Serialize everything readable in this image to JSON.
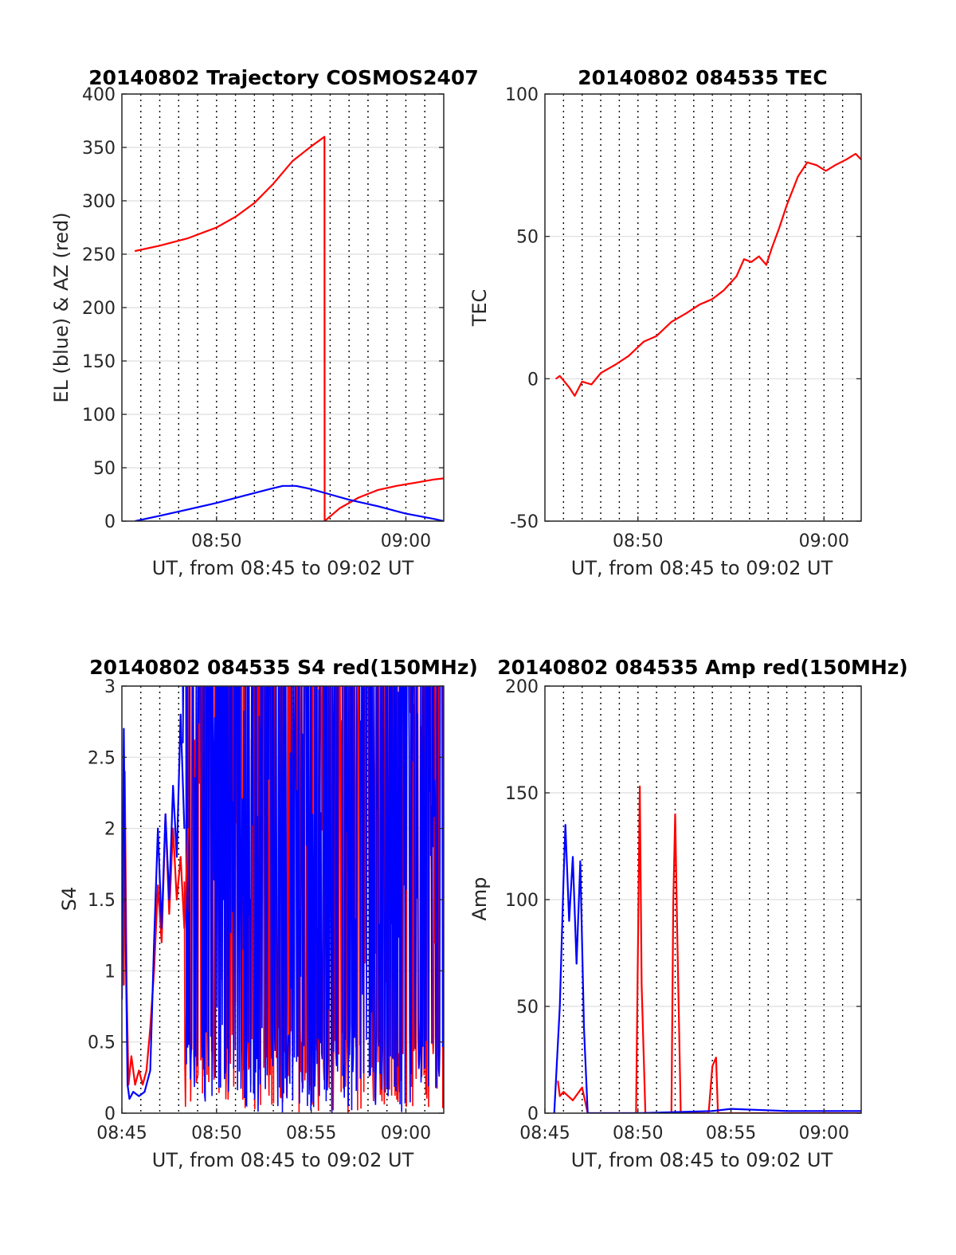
{
  "chart_data": [
    {
      "type": "line",
      "title": "20140802 Trajectory COSMOS2407",
      "xlabel": "UT, from 08:45 to 09:02 UT",
      "ylabel": "EL (blue) & AZ (red)",
      "xlim": [
        45.0,
        62.0
      ],
      "ylim": [
        0,
        400
      ],
      "xticks": [
        50,
        60
      ],
      "xtick_labels": [
        "08:50",
        "09:00"
      ],
      "yticks": [
        0,
        50,
        100,
        150,
        200,
        250,
        300,
        350,
        400
      ],
      "ytick_labels": [
        "0",
        "50",
        "100",
        "150",
        "200",
        "250",
        "300",
        "350",
        "400"
      ],
      "grid": true,
      "colors": {
        "EL": "#0000ff",
        "AZ": "#ff0000"
      },
      "series": [
        {
          "color": "#ff0000",
          "x": [
            45.7,
            47.0,
            48.5,
            50.0,
            51.0,
            52.0,
            53.0,
            54.0,
            55.0,
            55.7,
            55.71,
            56.5,
            57.5,
            58.5,
            59.5,
            60.5,
            61.5,
            62.0
          ],
          "y": [
            253,
            258,
            265,
            275,
            285,
            298,
            316,
            337,
            351,
            360,
            0,
            12,
            22,
            29,
            33,
            36,
            39,
            40
          ]
        },
        {
          "color": "#0000ff",
          "x": [
            45.7,
            47.0,
            48.5,
            50.0,
            51.5,
            52.8,
            53.5,
            54.2,
            55.0,
            56.0,
            57.0,
            58.5,
            60.0,
            61.5,
            62.0
          ],
          "y": [
            0,
            5,
            11,
            17,
            24,
            30,
            33,
            33,
            30,
            25,
            20,
            14,
            7,
            2,
            0
          ]
        }
      ]
    },
    {
      "type": "line",
      "title": "20140802 084535 TEC",
      "xlabel": "UT, from 08:45 to 09:02 UT",
      "ylabel": "TEC",
      "xlim": [
        45.0,
        62.0
      ],
      "ylim": [
        -50,
        100
      ],
      "xticks": [
        50,
        60
      ],
      "xtick_labels": [
        "08:50",
        "09:00"
      ],
      "yticks": [
        -50,
        0,
        50,
        100
      ],
      "ytick_labels": [
        "-50",
        "0",
        "50",
        "100"
      ],
      "grid": true,
      "series": [
        {
          "color": "#ff0000",
          "x": [
            45.6,
            45.8,
            46.3,
            46.6,
            47.0,
            47.5,
            48.0,
            48.8,
            49.5,
            50.3,
            51.0,
            51.8,
            52.6,
            53.3,
            54.0,
            54.6,
            55.3,
            55.7,
            56.1,
            56.5,
            56.9,
            57.2,
            57.6,
            58.0,
            58.6,
            59.1,
            59.6,
            60.1,
            60.6,
            61.2,
            61.7,
            62.0
          ],
          "y": [
            0,
            1,
            -3,
            -6,
            -1,
            -2,
            2,
            5,
            8,
            13,
            15,
            20,
            23,
            26,
            28,
            31,
            36,
            42,
            41,
            43,
            40,
            46,
            53,
            61,
            71,
            76,
            75,
            73,
            75,
            77,
            79,
            77
          ]
        }
      ]
    },
    {
      "type": "line",
      "title": "20140802 084535 S4 red(150MHz)",
      "xlabel": "UT, from 08:45 to 09:02 UT",
      "ylabel": "S4",
      "xlim": [
        45.0,
        62.0
      ],
      "ylim": [
        0,
        3
      ],
      "xticks": [
        45,
        50,
        55,
        60
      ],
      "xtick_labels": [
        "08:45",
        "08:50",
        "08:55",
        "09:00"
      ],
      "yticks": [
        0,
        0.5,
        1,
        1.5,
        2,
        2.5,
        3
      ],
      "ytick_labels": [
        "0",
        "0.5",
        "1",
        "1.5",
        "2",
        "2.5",
        "3"
      ],
      "grid": true,
      "series": [
        {
          "color": "#ff0000",
          "x": [
            45.1,
            45.15,
            45.25,
            45.35,
            45.5,
            45.7,
            45.9,
            46.1,
            46.3,
            46.5,
            46.7,
            46.9,
            47.1,
            47.3,
            47.5,
            47.7,
            47.9,
            48.1,
            48.3,
            48.5
          ],
          "y": [
            0.9,
            2.4,
            0.9,
            0.2,
            0.4,
            0.2,
            0.3,
            0.2,
            0.3,
            0.6,
            1.0,
            1.6,
            1.2,
            2.1,
            1.4,
            2.0,
            1.5,
            1.8,
            1.3,
            2.0
          ]
        },
        {
          "color": "#0000ff",
          "x": [
            45.0,
            45.1,
            45.2,
            45.3,
            45.4,
            45.6,
            45.9,
            46.2,
            46.5,
            46.7,
            46.9,
            47.1,
            47.3,
            47.5,
            47.7,
            47.9,
            48.1,
            48.3
          ],
          "y": [
            0.8,
            2.7,
            1.2,
            0.2,
            0.1,
            0.15,
            0.12,
            0.15,
            0.3,
            1.2,
            2.0,
            1.3,
            2.1,
            1.5,
            2.3,
            1.8,
            2.8,
            2.0
          ]
        }
      ]
    },
    {
      "type": "line",
      "title": "20140802 084535 Amp red(150MHz)",
      "xlabel": "UT, from 08:45 to 09:02 UT",
      "ylabel": "Amp",
      "xlim": [
        45.0,
        62.0
      ],
      "ylim": [
        0,
        200
      ],
      "xticks": [
        45,
        50,
        55,
        60
      ],
      "xtick_labels": [
        "08:45",
        "08:50",
        "08:55",
        "09:00"
      ],
      "yticks": [
        0,
        50,
        100,
        150,
        200
      ],
      "ytick_labels": [
        "0",
        "50",
        "100",
        "150",
        "200"
      ],
      "grid": true,
      "series": [
        {
          "color": "#ff0000",
          "x": [
            45.7,
            45.8,
            46.0,
            46.5,
            47.0,
            47.3,
            49.9,
            50.1,
            50.2,
            50.4,
            51.8,
            51.9,
            52.0,
            52.1,
            52.3,
            53.8,
            54.0,
            54.2,
            54.3,
            62.0
          ],
          "y": [
            15,
            8,
            10,
            6,
            12,
            0,
            0,
            153,
            60,
            0,
            0,
            98,
            140,
            90,
            0,
            0,
            22,
            26,
            0,
            0
          ]
        },
        {
          "color": "#0000ff",
          "x": [
            45.5,
            45.8,
            46.0,
            46.1,
            46.3,
            46.5,
            46.7,
            46.9,
            47.1,
            47.3,
            50.0,
            54.0,
            55.0,
            58.0,
            62.0
          ],
          "y": [
            0,
            50,
            110,
            135,
            90,
            120,
            70,
            118,
            40,
            0,
            0,
            1,
            2,
            1,
            1
          ]
        }
      ]
    }
  ]
}
